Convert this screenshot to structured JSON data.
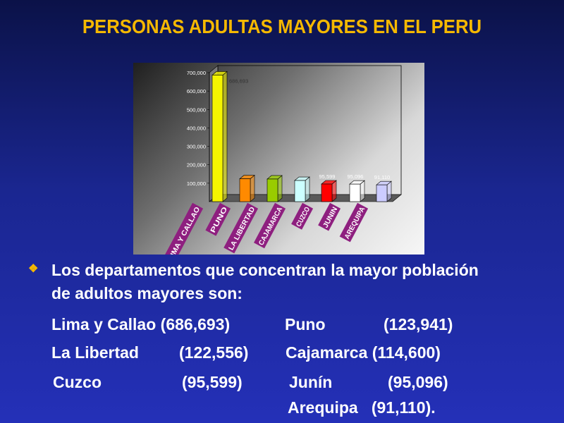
{
  "title": "PERSONAS ADULTAS MAYORES EN EL PERU",
  "chart_data": {
    "type": "bar",
    "categories": [
      "LIMA Y CALLAO",
      "PUNO",
      "LA LIBERTAD",
      "CAJAMARCA",
      "CUZCO",
      "JUNIN",
      "AREQUIPA"
    ],
    "values": [
      686693,
      123941,
      122556,
      114600,
      95599,
      95096,
      91110
    ],
    "data_labels": [
      "686,693",
      "",
      "",
      "",
      "95,599",
      "95,096",
      "91,110"
    ],
    "colors": [
      "#f5f500",
      "#ff8a00",
      "#99cc00",
      "#ccffff",
      "#ff0000",
      "#ffffff",
      "#ccccff"
    ],
    "y_ticks": [
      "100,000",
      "200,000",
      "300,000",
      "400,000",
      "500,000",
      "600,000",
      "700,000"
    ],
    "ylim": [
      0,
      700000
    ],
    "legend": "none",
    "grid": false,
    "title": "",
    "xlabel": "",
    "ylabel": ""
  },
  "bullet": {
    "icon": "diamond-bullet-icon",
    "line1": "Los departamentos que concentran la mayor población",
    "line2": "de adultos mayores son:",
    "rows": [
      [
        {
          "text": "Lima y Callao (686,693)"
        },
        {
          "text": "Puno"
        },
        {
          "text": "(123,941)"
        }
      ],
      [
        {
          "text": "La Libertad"
        },
        {
          "text": "(122,556)"
        },
        {
          "text": "Cajamarca (114,600)"
        }
      ],
      [
        {
          "text": "Cuzco"
        },
        {
          "text": "(95,599)"
        },
        {
          "text": "Junín"
        },
        {
          "text": "(95,096)"
        }
      ],
      [
        {
          "text": "Arequipa   (91,110)."
        }
      ]
    ]
  }
}
